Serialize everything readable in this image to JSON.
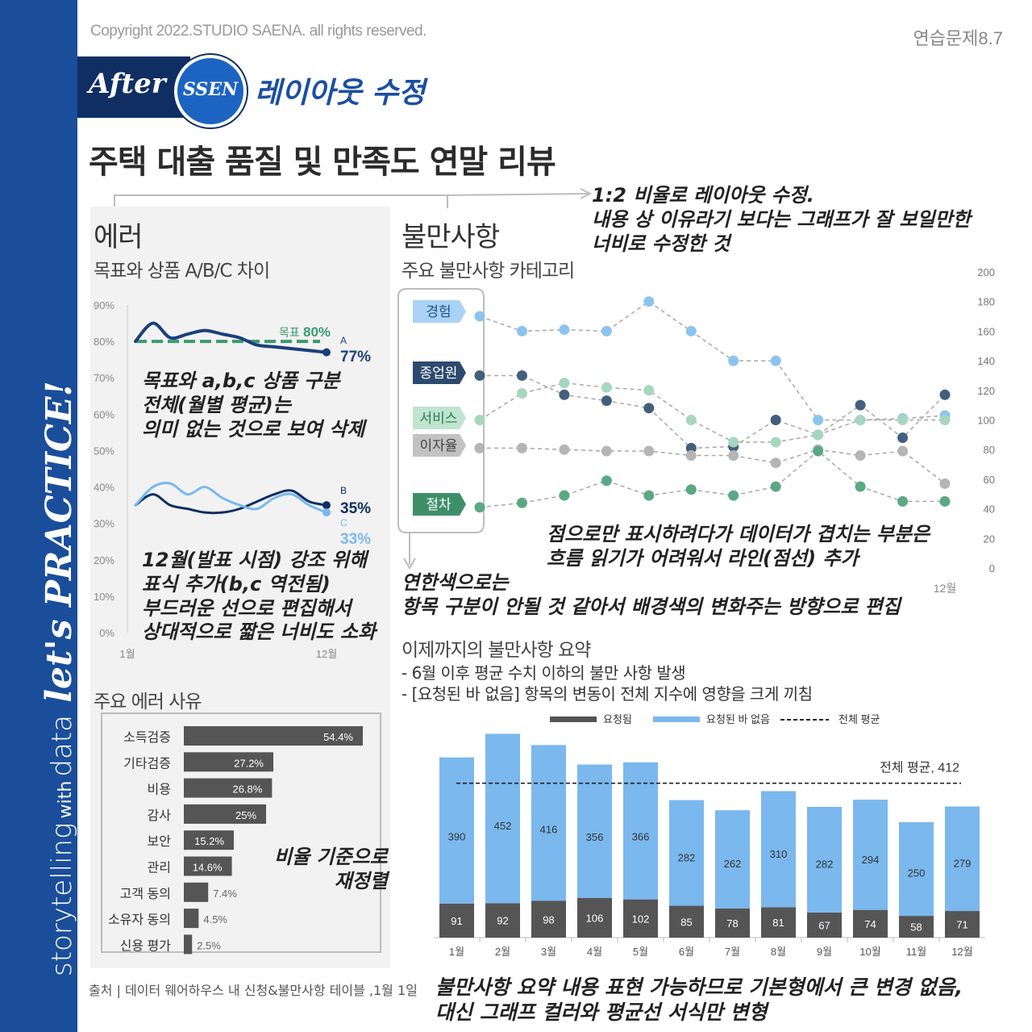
{
  "sidebar": {
    "part1": "storytelling",
    "part2": "with",
    "part3": "data",
    "part4": "let's PRACTICE!"
  },
  "header": {
    "copyright": "Copyright 2022.STUDIO SAENA. all rights reserved.",
    "exercise": "연습문제8.7",
    "after_label": "After",
    "badge": "SSEN",
    "layout_label": "레이아웃 수정",
    "title": "주택 대출 품질 및 만족도 연말 리뷰"
  },
  "notes": {
    "ratio": "1:2 비율로 레이아웃 수정.\n내용 상 이유라기 보다는 그래프가 잘 보일만한\n너비로 수정한 것",
    "goal": "목표와 a,b,c 상품 구분\n전체(월별 평균)는\n의미 없는 것으로 보여 삭제",
    "dec": "12월(발표 시점) 강조 위해\n표식 추가(b,c 역전됨)\n부드러운 선으로 편집해서\n상대적으로 짧은 너비도 소화",
    "ratio_sort": "비율 기준으로\n재정렬",
    "points": "점으로만 표시하려다가 데이터가 겹치는 부분은\n흐름 읽기가 어려워서 라인(점선) 추가",
    "light_color": "연한색으로는\n항목 구분이 안될 것 같아서 배경색의 변화주는 방향으로 편집",
    "bottom": "불만사항 요약 내용 표현 가능하므로 기본형에서 큰 변경 없음,\n대신 그래프 컬러와 평균선 서식만 변형"
  },
  "error_section": {
    "heading": "에러",
    "subheading": "목표와 상품 A/B/C 차이",
    "reasons_heading": "주요 에러 사유"
  },
  "complaint_section": {
    "heading": "불만사항",
    "subheading": "주요 불만사항 카테고리",
    "summary_title": "이제까지의 불만사항 요약",
    "summary_lines": [
      "- 6월 이후 평균 수치 이하의 불만 사항 발생",
      "- [요청된 바 없음] 항목의 변동이 전체 지수에 영향을 크게 끼침"
    ]
  },
  "source": "출처 | 데이터 웨어하우스 내 신청&불만사항 테이블 ,1월 1일",
  "colors": {
    "navy": "#0f2f63",
    "blue_dark": "#1b3f7a",
    "blue_light": "#7ab8ee",
    "green": "#3e8e6a",
    "goal_green": "#3a9a6e",
    "slate": "#42607c",
    "mint": "#a6d7be",
    "gray": "#b5b5b5",
    "dark_bar": "#555555"
  },
  "chart_data": [
    {
      "type": "line",
      "title": "목표와 상품 A/B/C 차이",
      "x": [
        "1월",
        "2월",
        "3월",
        "4월",
        "5월",
        "6월",
        "7월",
        "8월",
        "9월",
        "10월",
        "11월",
        "12월"
      ],
      "x_tick_labels": [
        "1월",
        "12월"
      ],
      "y_ticks": [
        "90%",
        "80%",
        "70%",
        "60%",
        "50%",
        "40%",
        "30%",
        "20%",
        "10%",
        "0%"
      ],
      "ylim": [
        0,
        90
      ],
      "series": [
        {
          "name": "A",
          "label": "77%",
          "values": [
            80,
            85,
            81,
            82,
            83,
            82,
            81,
            79,
            78.5,
            78,
            77.5,
            77
          ]
        },
        {
          "name": "B",
          "label": "35%",
          "values": [
            35,
            38,
            35,
            34,
            33,
            33,
            34,
            36,
            38,
            39,
            36,
            35
          ]
        },
        {
          "name": "C",
          "label": "33%",
          "values": [
            35,
            40,
            41,
            38,
            40,
            37,
            35,
            34,
            37,
            38,
            35,
            33
          ]
        }
      ],
      "goal": {
        "label": "목표",
        "value_label": "80%",
        "value": 80
      }
    },
    {
      "type": "line",
      "title": "주요 불만사항 카테고리",
      "categories": [
        "경험",
        "종업원",
        "서비스",
        "이자율",
        "절차"
      ],
      "x": [
        "1월",
        "2월",
        "3월",
        "4월",
        "5월",
        "6월",
        "7월",
        "8월",
        "9월",
        "10월",
        "11월",
        "12월"
      ],
      "x_tick_label": "12월",
      "y_ticks": [
        "200",
        "180",
        "160",
        "140",
        "120",
        "100",
        "80",
        "60",
        "40",
        "20",
        "0"
      ],
      "ylim": [
        0,
        200
      ],
      "series": [
        {
          "name": "경험",
          "values": [
            170,
            160,
            161,
            160,
            180,
            160,
            140,
            140,
            100,
            100,
            101,
            103
          ]
        },
        {
          "name": "종업원",
          "values": [
            130,
            130,
            117,
            113,
            108,
            81,
            82,
            100,
            90,
            110,
            88,
            117
          ]
        },
        {
          "name": "서비스",
          "values": [
            100,
            118,
            125,
            122,
            120,
            100,
            85,
            85,
            90,
            100,
            100,
            100
          ]
        },
        {
          "name": "이자율",
          "values": [
            81,
            81,
            80,
            79,
            79,
            76,
            76,
            71,
            80,
            76,
            79,
            57
          ]
        },
        {
          "name": "절차",
          "values": [
            41,
            44,
            49,
            59,
            49,
            53,
            49,
            55,
            79,
            55,
            45,
            45
          ]
        }
      ]
    },
    {
      "type": "bar",
      "title": "주요 에러 사유",
      "categories": [
        "소득검증",
        "기타검증",
        "비용",
        "감사",
        "보안",
        "관리",
        "고객 동의",
        "소유자 동의",
        "신용 평가"
      ],
      "values": [
        54.4,
        27.2,
        26.8,
        25,
        15.2,
        14.6,
        7.4,
        4.5,
        2.5
      ],
      "value_labels": [
        "54.4%",
        "27.2%",
        "26.8%",
        "25%",
        "15.2%",
        "14.6%",
        "7.4%",
        "4.5%",
        "2.5%"
      ]
    },
    {
      "type": "bar",
      "stacked": true,
      "title": "이제까지의 불만사항 요약",
      "categories": [
        "1월",
        "2월",
        "3월",
        "4월",
        "5월",
        "6월",
        "7월",
        "8월",
        "9월",
        "10월",
        "11월",
        "12월"
      ],
      "series": [
        {
          "name": "요청됨",
          "values": [
            91,
            92,
            98,
            106,
            102,
            85,
            78,
            81,
            67,
            74,
            58,
            71
          ]
        },
        {
          "name": "요청된 바 없음",
          "values": [
            390,
            452,
            416,
            356,
            366,
            282,
            262,
            310,
            282,
            294,
            250,
            279
          ]
        }
      ],
      "average": {
        "name": "전체 평균",
        "label": "전체 평균, 412",
        "value": 412
      },
      "legend": [
        "요청됨",
        "요청된 바 없음",
        "전체 평균"
      ],
      "ylim": [
        0,
        560
      ]
    }
  ]
}
